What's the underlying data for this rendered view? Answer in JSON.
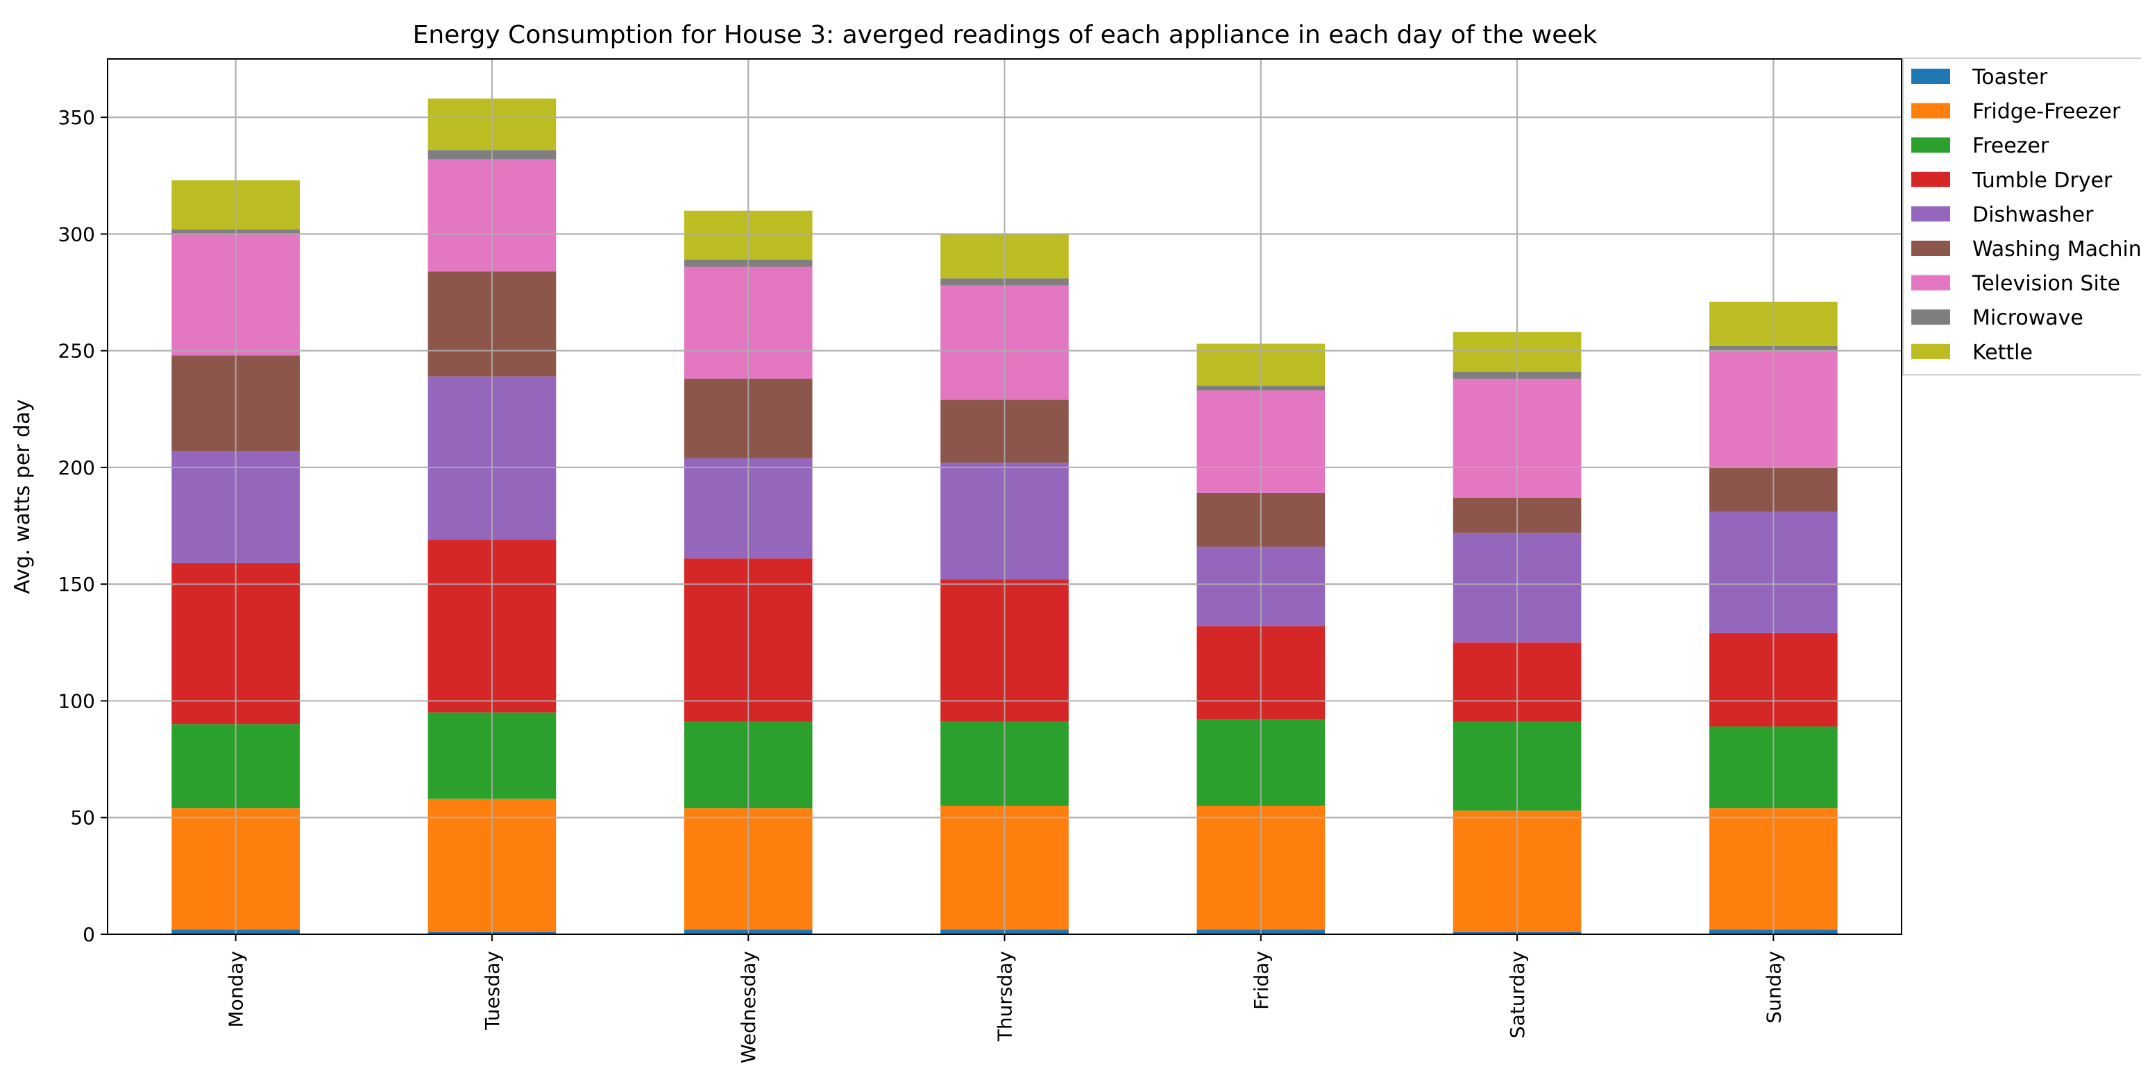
{
  "chart_data": {
    "type": "bar",
    "stacked": true,
    "title": "Energy Consumption for House 3: averged readings of each appliance in each day of the week",
    "xlabel": "",
    "ylabel": "Avg. watts per day",
    "ylim": [
      0,
      375
    ],
    "yticks": [
      0,
      50,
      100,
      150,
      200,
      250,
      300,
      350
    ],
    "grid": true,
    "legend_position": "top-right, outside",
    "categories": [
      "Monday",
      "Tuesday",
      "Wednesday",
      "Thursday",
      "Friday",
      "Saturday",
      "Sunday"
    ],
    "series": [
      {
        "name": "Toaster",
        "color": "#1f77b4",
        "values": [
          2,
          1,
          2,
          2,
          2,
          1,
          2
        ]
      },
      {
        "name": "Fridge-Freezer",
        "color": "#ff7f0e",
        "values": [
          52,
          57,
          52,
          53,
          53,
          52,
          52
        ]
      },
      {
        "name": "Freezer",
        "color": "#2ca02c",
        "values": [
          36,
          37,
          37,
          36,
          37,
          38,
          35
        ]
      },
      {
        "name": "Tumble Dryer",
        "color": "#d62728",
        "values": [
          69,
          74,
          70,
          61,
          40,
          34,
          40
        ]
      },
      {
        "name": "Dishwasher",
        "color": "#9467bd",
        "values": [
          48,
          70,
          43,
          50,
          34,
          47,
          52
        ]
      },
      {
        "name": "Washing Machine",
        "color": "#8c564b",
        "values": [
          41,
          45,
          34,
          27,
          23,
          15,
          19
        ]
      },
      {
        "name": "Television Site",
        "color": "#e377c2",
        "values": [
          52,
          48,
          48,
          49,
          44,
          51,
          50
        ]
      },
      {
        "name": "Microwave",
        "color": "#7f7f7f",
        "values": [
          2,
          4,
          3,
          3,
          2,
          3,
          2
        ]
      },
      {
        "name": "Kettle",
        "color": "#bcbd22",
        "values": [
          21,
          22,
          21,
          19,
          18,
          17,
          19
        ]
      }
    ]
  }
}
